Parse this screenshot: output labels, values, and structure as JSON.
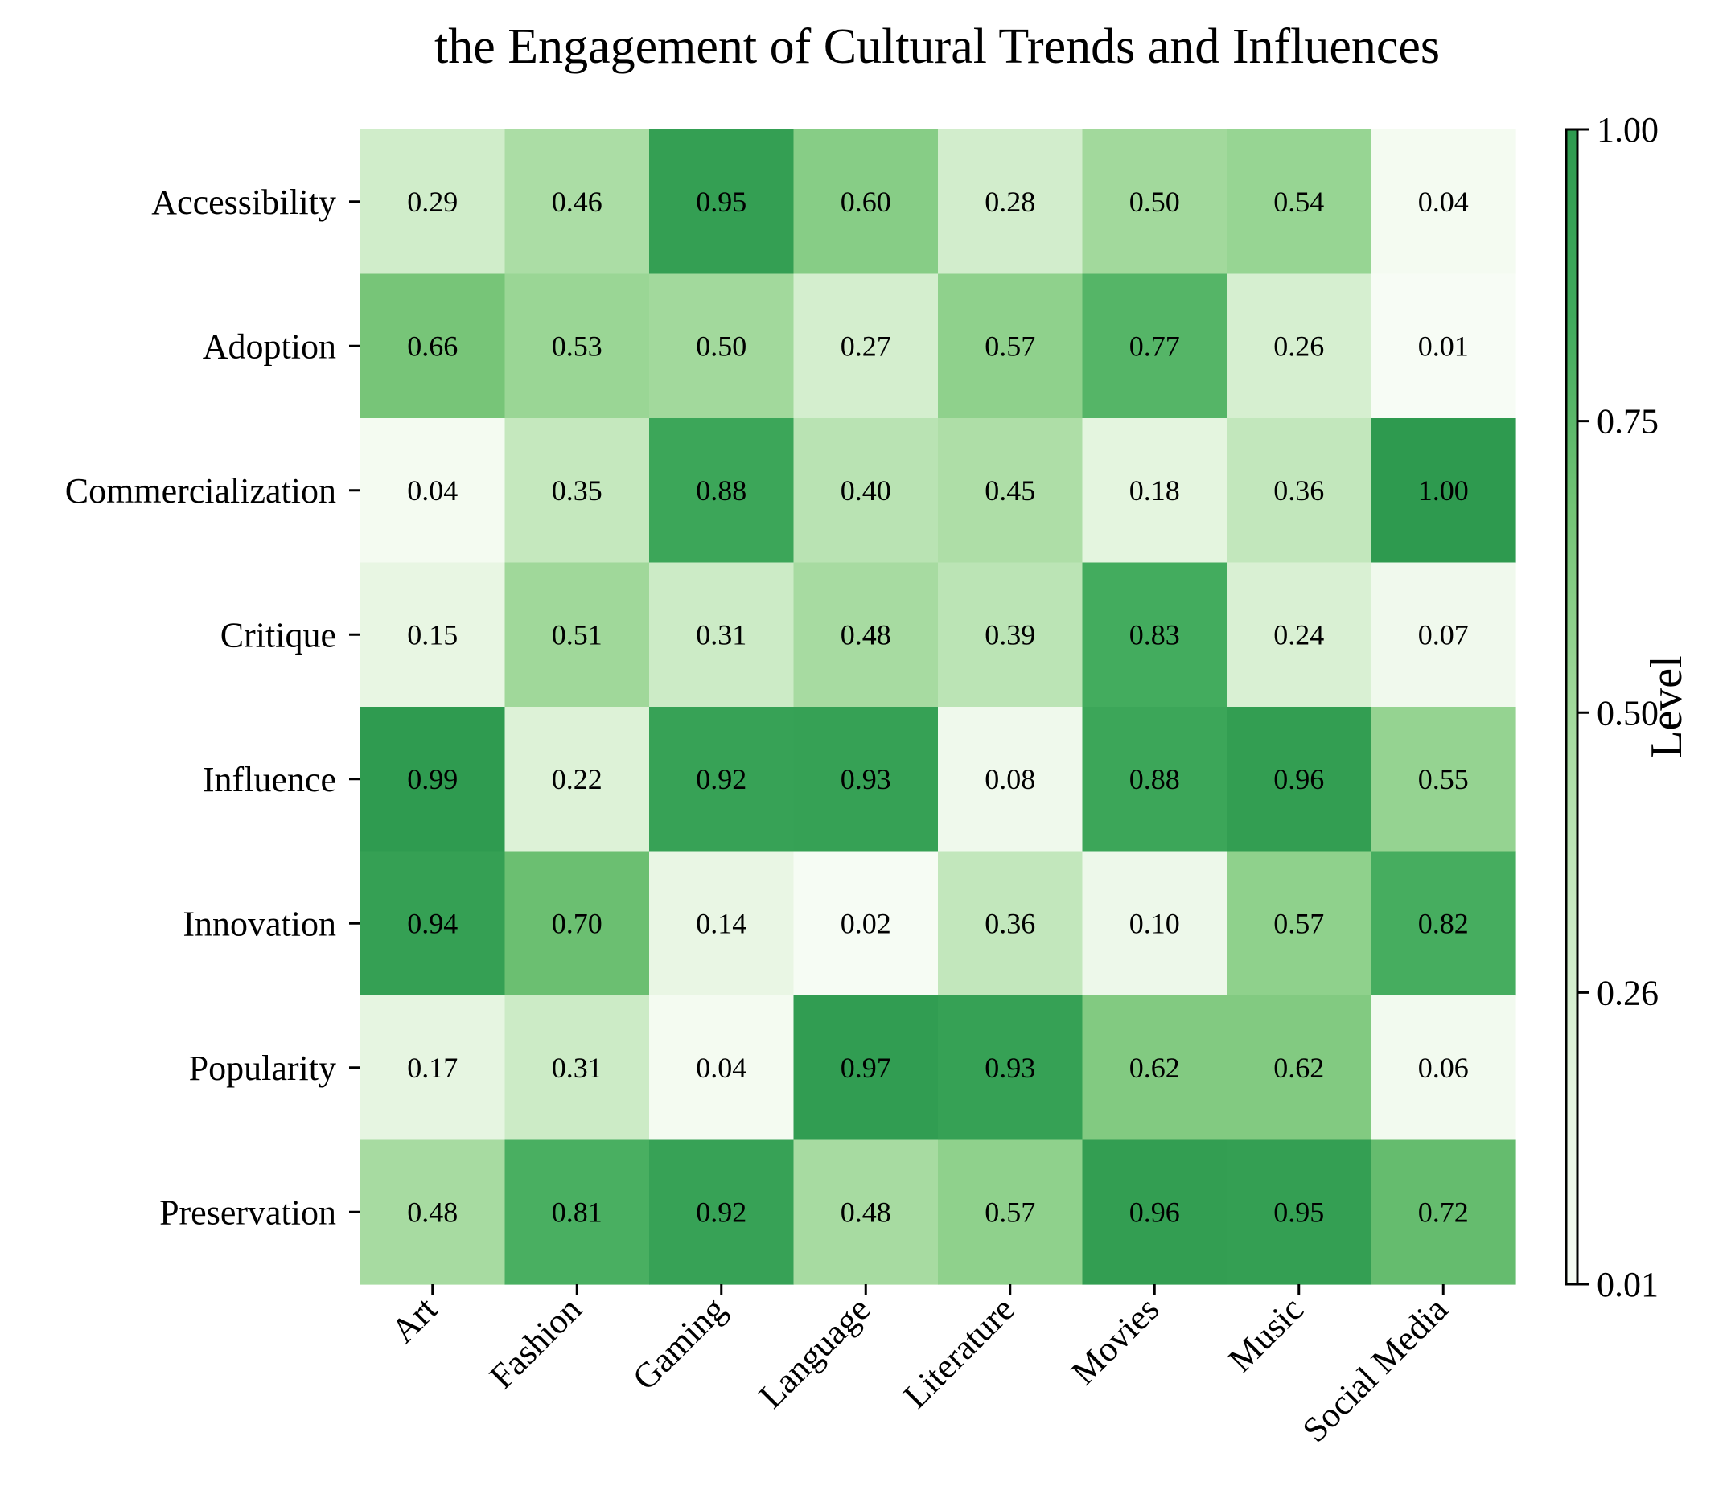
{
  "chart_data": {
    "type": "heatmap",
    "title": "the Engagement of Cultural Trends and Influences",
    "xlabel": "",
    "ylabel": "",
    "x_categories": [
      "Art",
      "Fashion",
      "Gaming",
      "Language",
      "Literature",
      "Movies",
      "Music",
      "Social Media"
    ],
    "y_categories": [
      "Accessibility",
      "Adoption",
      "Commercialization",
      "Critique",
      "Influence",
      "Innovation",
      "Popularity",
      "Preservation"
    ],
    "values": [
      [
        0.29,
        0.46,
        0.95,
        0.6,
        0.28,
        0.5,
        0.54,
        0.04
      ],
      [
        0.66,
        0.53,
        0.5,
        0.27,
        0.57,
        0.77,
        0.26,
        0.01
      ],
      [
        0.04,
        0.35,
        0.88,
        0.4,
        0.45,
        0.18,
        0.36,
        1.0
      ],
      [
        0.15,
        0.51,
        0.31,
        0.48,
        0.39,
        0.83,
        0.24,
        0.07
      ],
      [
        0.99,
        0.22,
        0.92,
        0.93,
        0.08,
        0.88,
        0.96,
        0.55
      ],
      [
        0.94,
        0.7,
        0.14,
        0.02,
        0.36,
        0.1,
        0.57,
        0.82
      ],
      [
        0.17,
        0.31,
        0.04,
        0.97,
        0.93,
        0.62,
        0.62,
        0.06
      ],
      [
        0.48,
        0.81,
        0.92,
        0.48,
        0.57,
        0.96,
        0.95,
        0.72
      ]
    ],
    "value_range": [
      0.01,
      1.0
    ],
    "colorbar": {
      "label": "Level",
      "ticks": [
        1.0,
        0.75,
        0.5,
        0.26,
        0.01
      ],
      "tick_labels": [
        "1.00",
        "0.75",
        "0.50",
        "0.26",
        "0.01"
      ]
    },
    "colormap": {
      "name": "Greens",
      "low_color": "#f7fcf5",
      "high_color": "#2e9a4f",
      "stops": [
        "#f7fcf5",
        "#e5f5e0",
        "#c7e9c0",
        "#a1d99b",
        "#74c476",
        "#41ab5d",
        "#2e9a4f"
      ]
    },
    "grid": false,
    "cell_label_format": "2 decimals"
  }
}
